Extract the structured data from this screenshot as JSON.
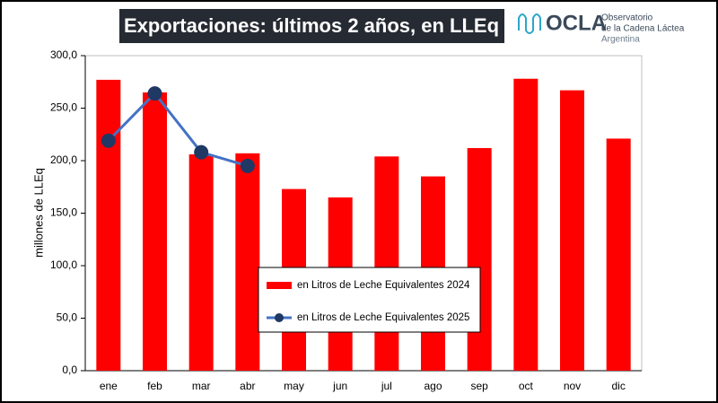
{
  "chart_data": {
    "type": "bar",
    "title": "Exportaciones: últimos 2 años, en LLEq",
    "logo": {
      "name": "OCLA",
      "line1": "Observatorio",
      "line2": "de la Cadena Láctea",
      "line3": "Argentina"
    },
    "y_label": "millones de LLEq",
    "categories": [
      "ene",
      "feb",
      "mar",
      "abr",
      "may",
      "jun",
      "jul",
      "ago",
      "sep",
      "oct",
      "nov",
      "dic"
    ],
    "series": [
      {
        "name": "en Litros de Leche Equivalentes 2024",
        "type": "bar",
        "color": "#ff0000",
        "values": [
          277,
          265,
          206,
          207,
          173,
          165,
          204,
          185,
          212,
          278,
          267,
          221
        ]
      },
      {
        "name": "en Litros de Leche Equivalentes 2025",
        "type": "line",
        "color": "#4472c4",
        "marker_color": "#1f3864",
        "values": [
          219,
          264,
          208,
          195,
          null,
          null,
          null,
          null,
          null,
          null,
          null,
          null
        ]
      }
    ],
    "ylim": [
      0,
      300
    ],
    "yticks": [
      {
        "value": 0,
        "label": "0,0"
      },
      {
        "value": 50,
        "label": "50,0"
      },
      {
        "value": 100,
        "label": "100,0"
      },
      {
        "value": 150,
        "label": "150,0"
      },
      {
        "value": 200,
        "label": "200,0"
      },
      {
        "value": 250,
        "label": "250,0"
      },
      {
        "value": 300,
        "label": "300,0"
      }
    ],
    "grid": false
  }
}
